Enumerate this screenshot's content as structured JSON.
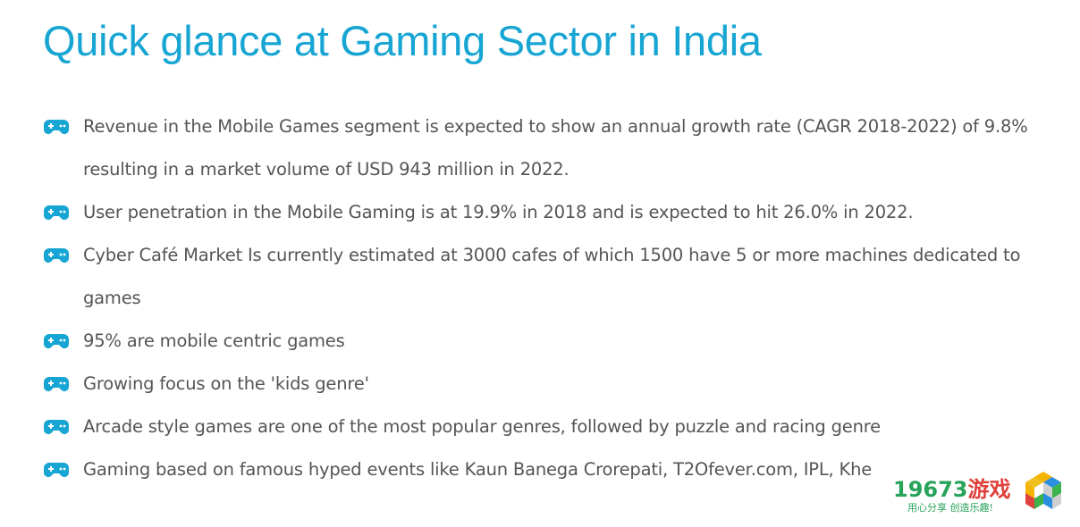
{
  "title": "Quick glance at Gaming Sector in India",
  "bullet_icon": "gamepad-icon",
  "accent_color": "#17a5d3",
  "bullets": [
    "Revenue in the Mobile Games segment is expected to show an annual growth rate (CAGR 2018-2022) of 9.8% resulting in a market volume of USD 943 million in 2022.",
    "User penetration in the Mobile Gaming is at 19.9% in 2018 and is expected to hit 26.0% in 2022.",
    "Cyber Café Market Is currently estimated at 3000 cafes of which 1500 have 5 or more machines dedicated to games",
    "95% are mobile centric games",
    "Growing focus on the 'kids genre'",
    "Arcade style games are one of the most popular genres, followed by puzzle and racing genre",
    "Gaming based on famous hyped events like Kaun Banega Crorepati, T2Ofever.com, IPL, Khe"
  ],
  "watermark": {
    "number": "19673",
    "chinese": "游戏",
    "slogan": "用心分享 创造乐趣!"
  }
}
